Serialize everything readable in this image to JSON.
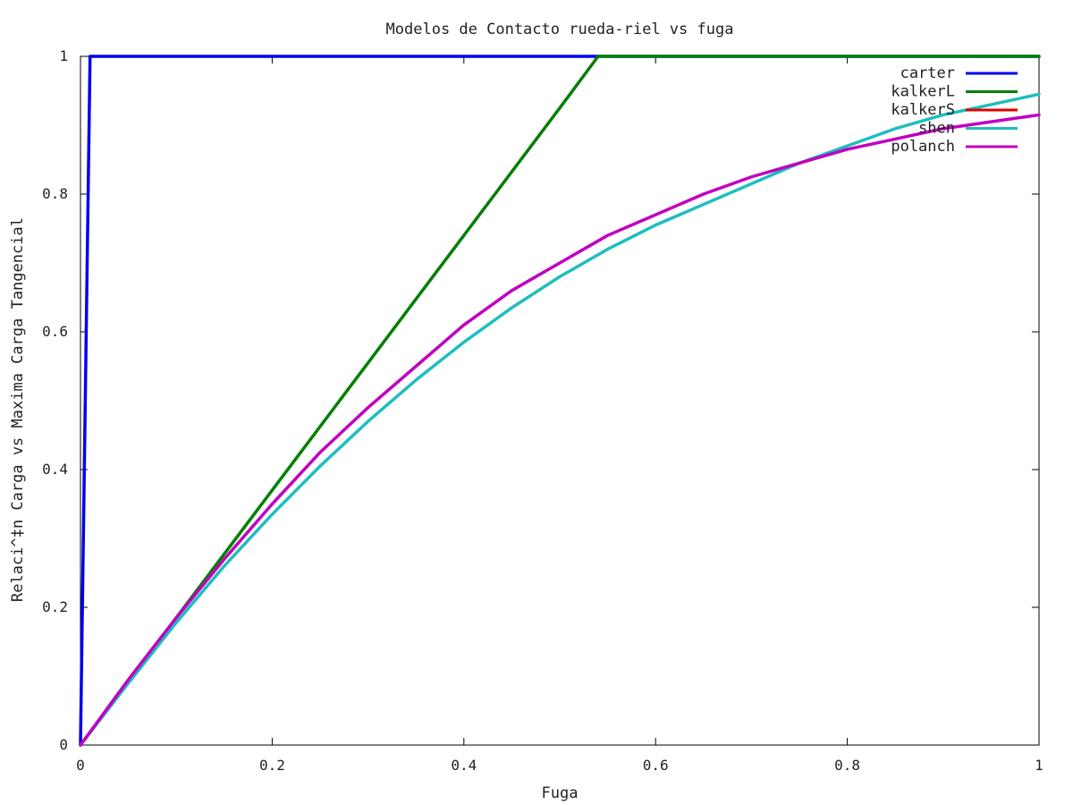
{
  "chart_data": {
    "type": "line",
    "title": "Modelos de Contacto rueda-riel vs fuga",
    "xlabel": "Fuga",
    "ylabel": "Relaci^‡n Carga vs Maxima Carga Tangencial",
    "xlim": [
      0,
      1
    ],
    "ylim": [
      0,
      1
    ],
    "xticks": [
      "0",
      "0.2",
      "0.4",
      "0.6",
      "0.8",
      "1"
    ],
    "yticks": [
      "0",
      "0.2",
      "0.4",
      "0.6",
      "0.8",
      "1"
    ],
    "grid": false,
    "legend_position": "top-right",
    "series": [
      {
        "name": "carter",
        "color": "#0000ee",
        "x": [
          0,
          0.01,
          0.02,
          0.1,
          0.2,
          0.4,
          0.6,
          0.8,
          1.0
        ],
        "y": [
          0,
          1,
          1,
          1,
          1,
          1,
          1,
          1,
          1
        ]
      },
      {
        "name": "kalkerL",
        "color": "#008000",
        "x": [
          0,
          0.1,
          0.2,
          0.3,
          0.4,
          0.5,
          0.54,
          0.6,
          0.8,
          1.0
        ],
        "y": [
          0,
          0.185,
          0.37,
          0.555,
          0.74,
          0.925,
          1,
          1,
          1,
          1
        ]
      },
      {
        "name": "kalkerS",
        "color": "#e00000",
        "x": [],
        "y": []
      },
      {
        "name": "shen",
        "color": "#1ebebe",
        "x": [
          0,
          0.05,
          0.1,
          0.15,
          0.2,
          0.25,
          0.3,
          0.35,
          0.4,
          0.45,
          0.5,
          0.55,
          0.6,
          0.65,
          0.7,
          0.75,
          0.8,
          0.85,
          0.9,
          0.95,
          1.0
        ],
        "y": [
          0,
          0.09,
          0.178,
          0.26,
          0.335,
          0.405,
          0.47,
          0.53,
          0.585,
          0.635,
          0.68,
          0.72,
          0.755,
          0.785,
          0.815,
          0.845,
          0.87,
          0.895,
          0.915,
          0.93,
          0.945
        ]
      },
      {
        "name": "polanch",
        "color": "#c000c0",
        "x": [
          0,
          0.05,
          0.1,
          0.15,
          0.2,
          0.25,
          0.3,
          0.35,
          0.4,
          0.45,
          0.5,
          0.55,
          0.6,
          0.65,
          0.7,
          0.75,
          0.8,
          0.85,
          0.9,
          0.95,
          1.0
        ],
        "y": [
          0,
          0.095,
          0.185,
          0.27,
          0.35,
          0.425,
          0.49,
          0.55,
          0.61,
          0.66,
          0.7,
          0.74,
          0.77,
          0.8,
          0.825,
          0.845,
          0.865,
          0.88,
          0.895,
          0.905,
          0.915
        ]
      }
    ]
  }
}
